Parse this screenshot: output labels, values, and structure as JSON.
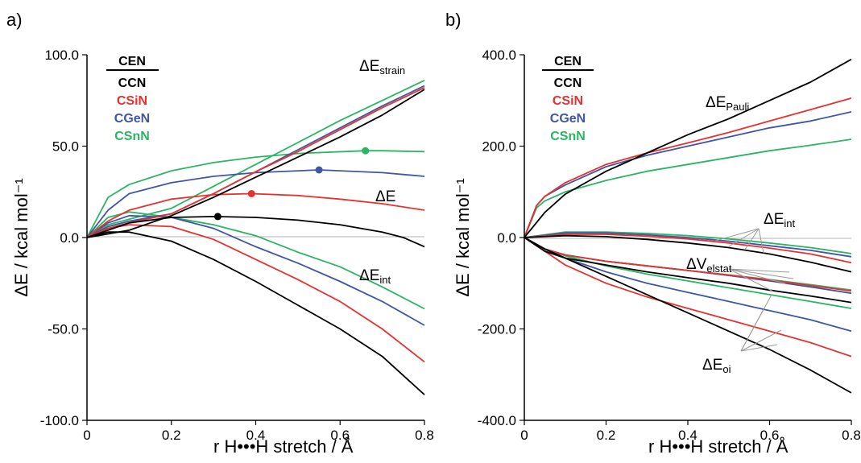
{
  "colors": {
    "CEN": "#000000",
    "CCN": "#000000",
    "CSiN": "#e8312f",
    "CGeN": "#3f56a6",
    "CSnN": "#2ab563",
    "zero_line": "#b3b3b3",
    "pointer_line": "#9a9a9a"
  },
  "charts": {
    "a": {
      "panel_label": "a)",
      "xlabel": "r H•••H stretch / Å",
      "ylabel": "ΔE / kcal mol⁻¹",
      "xticks": [
        "0",
        "0.2",
        "0.4",
        "0.6",
        "0.8"
      ],
      "yticks": [
        "100.0",
        "50.0",
        "0.0",
        "-50.0",
        "-100.0"
      ],
      "legend": {
        "header": "CEN",
        "items": [
          "CCN",
          "CSiN",
          "CGeN",
          "CSnN"
        ]
      },
      "annotations": {
        "strain": {
          "main": "ΔE",
          "sub": "strain"
        },
        "total": {
          "main": "ΔE",
          "sub": ""
        },
        "int": {
          "main": "ΔE",
          "sub": "int"
        }
      }
    },
    "b": {
      "panel_label": "b)",
      "xlabel": "r H•••H stretch / Å",
      "ylabel": "ΔE / kcal mol⁻¹",
      "xticks": [
        "0",
        "0.2",
        "0.4",
        "0.6",
        "0.8"
      ],
      "yticks": [
        "400.0",
        "200.0",
        "0.0",
        "-200.0",
        "-400.0"
      ],
      "legend": {
        "header": "CEN",
        "items": [
          "CCN",
          "CSiN",
          "CGeN",
          "CSnN"
        ]
      },
      "annotations": {
        "pauli": {
          "main": "ΔE",
          "sub": "Pauli"
        },
        "int": {
          "main": "ΔE",
          "sub": "int"
        },
        "elstat": {
          "main": "ΔV",
          "sub": "elstat"
        },
        "oi": {
          "main": "ΔE",
          "sub": "oi"
        }
      }
    }
  },
  "chart_data": [
    {
      "type": "line",
      "panel": "a",
      "xlabel": "r H•••H stretch / Å",
      "ylabel": "ΔE / kcal mol⁻¹",
      "xlim": [
        0,
        0.8
      ],
      "ylim": [
        -100,
        100
      ],
      "series": [
        {
          "name": "CCN",
          "quantity": "strain",
          "x": [
            0,
            0.1,
            0.2,
            0.3,
            0.4,
            0.5,
            0.6,
            0.7,
            0.8
          ],
          "y": [
            0,
            4,
            12,
            22,
            33,
            44,
            55,
            67,
            81
          ]
        },
        {
          "name": "CSiN",
          "quantity": "strain",
          "x": [
            0,
            0.05,
            0.1,
            0.2,
            0.3,
            0.4,
            0.5,
            0.6,
            0.7,
            0.8
          ],
          "y": [
            0,
            5,
            8,
            13,
            24,
            36,
            47,
            59,
            71,
            82
          ]
        },
        {
          "name": "CGeN",
          "quantity": "strain",
          "x": [
            0,
            0.05,
            0.1,
            0.2,
            0.3,
            0.4,
            0.5,
            0.6,
            0.7,
            0.8
          ],
          "y": [
            0,
            6,
            9,
            13,
            24,
            36,
            48,
            60,
            72,
            83
          ]
        },
        {
          "name": "CSnN",
          "quantity": "strain",
          "x": [
            0,
            0.05,
            0.1,
            0.2,
            0.3,
            0.4,
            0.5,
            0.6,
            0.7,
            0.8
          ],
          "y": [
            0,
            7,
            10,
            16,
            28,
            40,
            52,
            64,
            75,
            86
          ]
        },
        {
          "name": "CCN",
          "quantity": "total",
          "x": [
            0,
            0.05,
            0.1,
            0.2,
            0.3,
            0.4,
            0.5,
            0.6,
            0.7,
            0.75,
            0.8
          ],
          "y": [
            0,
            4,
            8,
            11,
            11.5,
            11,
            9.5,
            7,
            3,
            0,
            -5
          ]
        },
        {
          "name": "CSiN",
          "quantity": "total",
          "x": [
            0,
            0.05,
            0.1,
            0.2,
            0.3,
            0.39,
            0.5,
            0.6,
            0.7,
            0.8
          ],
          "y": [
            0,
            9,
            15,
            21,
            23.5,
            24,
            23,
            21,
            18.5,
            15
          ]
        },
        {
          "name": "CGeN",
          "quantity": "total",
          "x": [
            0,
            0.05,
            0.1,
            0.2,
            0.3,
            0.4,
            0.55,
            0.6,
            0.7,
            0.8
          ],
          "y": [
            0,
            15,
            24,
            30,
            33.5,
            35.5,
            37,
            36.5,
            35.5,
            33.5
          ]
        },
        {
          "name": "CSnN",
          "quantity": "total",
          "x": [
            0,
            0.05,
            0.1,
            0.2,
            0.3,
            0.4,
            0.5,
            0.66,
            0.7,
            0.8
          ],
          "y": [
            0,
            22,
            29,
            36.5,
            41,
            44,
            46,
            47.5,
            47.5,
            47
          ]
        },
        {
          "name": "CCN",
          "quantity": "int",
          "x": [
            0,
            0.05,
            0.1,
            0.2,
            0.3,
            0.4,
            0.5,
            0.6,
            0.7,
            0.8
          ],
          "y": [
            0,
            3,
            3,
            -2,
            -12,
            -24,
            -37,
            -50,
            -65,
            -86
          ]
        },
        {
          "name": "CSiN",
          "quantity": "int",
          "x": [
            0,
            0.05,
            0.1,
            0.2,
            0.3,
            0.4,
            0.5,
            0.6,
            0.7,
            0.8
          ],
          "y": [
            0,
            5,
            7,
            6,
            -1,
            -12,
            -23,
            -35,
            -50,
            -68
          ]
        },
        {
          "name": "CGeN",
          "quantity": "int",
          "x": [
            0,
            0.05,
            0.1,
            0.2,
            0.3,
            0.4,
            0.5,
            0.6,
            0.7,
            0.8
          ],
          "y": [
            0,
            8,
            12,
            11,
            5,
            -5,
            -14,
            -24,
            -35,
            -48
          ]
        },
        {
          "name": "CSnN",
          "quantity": "int",
          "x": [
            0,
            0.05,
            0.1,
            0.2,
            0.3,
            0.4,
            0.5,
            0.6,
            0.7,
            0.8
          ],
          "y": [
            0,
            11,
            14,
            11,
            7,
            1,
            -8,
            -16,
            -27,
            -39
          ]
        }
      ],
      "markers": [
        {
          "name": "CCN",
          "x": 0.31,
          "y": 11.5
        },
        {
          "name": "CSiN",
          "x": 0.39,
          "y": 24
        },
        {
          "name": "CGeN",
          "x": 0.55,
          "y": 37
        },
        {
          "name": "CSnN",
          "x": 0.66,
          "y": 47.5
        }
      ]
    },
    {
      "type": "line",
      "panel": "b",
      "xlabel": "r H•••H stretch / Å",
      "ylabel": "ΔE / kcal mol⁻¹",
      "xlim": [
        0,
        0.8
      ],
      "ylim": [
        -400,
        400
      ],
      "series": [
        {
          "name": "CCN",
          "quantity": "Pauli",
          "x": [
            0,
            0.05,
            0.1,
            0.2,
            0.3,
            0.4,
            0.5,
            0.6,
            0.7,
            0.8
          ],
          "y": [
            0,
            55,
            95,
            145,
            185,
            225,
            260,
            300,
            340,
            390
          ]
        },
        {
          "name": "CSiN",
          "quantity": "Pauli",
          "x": [
            0,
            0.03,
            0.05,
            0.1,
            0.2,
            0.3,
            0.4,
            0.5,
            0.6,
            0.7,
            0.8
          ],
          "y": [
            0,
            70,
            90,
            120,
            160,
            185,
            207,
            230,
            255,
            280,
            305
          ]
        },
        {
          "name": "CGeN",
          "quantity": "Pauli",
          "x": [
            0,
            0.03,
            0.05,
            0.1,
            0.2,
            0.3,
            0.4,
            0.5,
            0.6,
            0.7,
            0.8
          ],
          "y": [
            0,
            70,
            90,
            115,
            155,
            180,
            200,
            220,
            240,
            255,
            275
          ]
        },
        {
          "name": "CSnN",
          "quantity": "Pauli",
          "x": [
            0,
            0.03,
            0.05,
            0.1,
            0.2,
            0.3,
            0.4,
            0.5,
            0.6,
            0.7,
            0.8
          ],
          "y": [
            0,
            65,
            80,
            100,
            125,
            145,
            160,
            175,
            190,
            202,
            215
          ]
        },
        {
          "name": "CCN",
          "quantity": "int",
          "x": [
            0,
            0.1,
            0.2,
            0.3,
            0.4,
            0.5,
            0.6,
            0.7,
            0.8
          ],
          "y": [
            0,
            4,
            2,
            -4,
            -12,
            -22,
            -36,
            -54,
            -75
          ]
        },
        {
          "name": "CSiN",
          "quantity": "int",
          "x": [
            0,
            0.1,
            0.2,
            0.3,
            0.4,
            0.5,
            0.6,
            0.7,
            0.8
          ],
          "y": [
            0,
            7,
            7,
            3,
            -3,
            -12,
            -23,
            -36,
            -55
          ]
        },
        {
          "name": "CGeN",
          "quantity": "int",
          "x": [
            0,
            0.1,
            0.2,
            0.3,
            0.4,
            0.5,
            0.6,
            0.7,
            0.8
          ],
          "y": [
            0,
            10,
            10,
            6,
            0,
            -8,
            -18,
            -28,
            -42
          ]
        },
        {
          "name": "CSnN",
          "quantity": "int",
          "x": [
            0,
            0.1,
            0.2,
            0.3,
            0.4,
            0.5,
            0.6,
            0.7,
            0.8
          ],
          "y": [
            0,
            12,
            12,
            9,
            4,
            -3,
            -12,
            -22,
            -35
          ]
        },
        {
          "name": "CCN",
          "quantity": "elstat",
          "x": [
            0,
            0.05,
            0.1,
            0.2,
            0.3,
            0.4,
            0.5,
            0.6,
            0.7,
            0.8
          ],
          "y": [
            0,
            -30,
            -45,
            -60,
            -75,
            -88,
            -100,
            -115,
            -128,
            -142
          ]
        },
        {
          "name": "CSiN",
          "quantity": "elstat",
          "x": [
            0,
            0.05,
            0.1,
            0.2,
            0.3,
            0.4,
            0.5,
            0.6,
            0.7,
            0.8
          ],
          "y": [
            0,
            -25,
            -38,
            -52,
            -62,
            -72,
            -82,
            -93,
            -105,
            -117
          ]
        },
        {
          "name": "CGeN",
          "quantity": "elstat",
          "x": [
            0,
            0.05,
            0.1,
            0.2,
            0.3,
            0.4,
            0.5,
            0.6,
            0.7,
            0.8
          ],
          "y": [
            0,
            -25,
            -38,
            -52,
            -62,
            -72,
            -83,
            -95,
            -108,
            -122
          ]
        },
        {
          "name": "CSnN",
          "quantity": "elstat",
          "x": [
            0,
            0.05,
            0.1,
            0.2,
            0.3,
            0.4,
            0.5,
            0.6,
            0.7,
            0.8
          ],
          "y": [
            0,
            -25,
            -38,
            -52,
            -62,
            -72,
            -82,
            -92,
            -103,
            -115
          ]
        },
        {
          "name": "CCN",
          "quantity": "oi",
          "x": [
            0,
            0.05,
            0.1,
            0.2,
            0.3,
            0.4,
            0.5,
            0.6,
            0.7,
            0.8
          ],
          "y": [
            0,
            -25,
            -45,
            -85,
            -125,
            -165,
            -205,
            -245,
            -290,
            -340
          ]
        },
        {
          "name": "CSiN",
          "quantity": "oi",
          "x": [
            0,
            0.05,
            0.1,
            0.2,
            0.3,
            0.4,
            0.5,
            0.6,
            0.7,
            0.8
          ],
          "y": [
            0,
            -30,
            -60,
            -100,
            -130,
            -155,
            -180,
            -205,
            -230,
            -260
          ]
        },
        {
          "name": "CGeN",
          "quantity": "oi",
          "x": [
            0,
            0.05,
            0.1,
            0.2,
            0.3,
            0.4,
            0.5,
            0.6,
            0.7,
            0.8
          ],
          "y": [
            0,
            -25,
            -45,
            -75,
            -100,
            -120,
            -140,
            -160,
            -180,
            -205
          ]
        },
        {
          "name": "CSnN",
          "quantity": "oi",
          "x": [
            0,
            0.05,
            0.1,
            0.2,
            0.3,
            0.4,
            0.5,
            0.6,
            0.7,
            0.8
          ],
          "y": [
            0,
            -25,
            -40,
            -62,
            -80,
            -95,
            -110,
            -125,
            -140,
            -155
          ]
        }
      ]
    }
  ]
}
